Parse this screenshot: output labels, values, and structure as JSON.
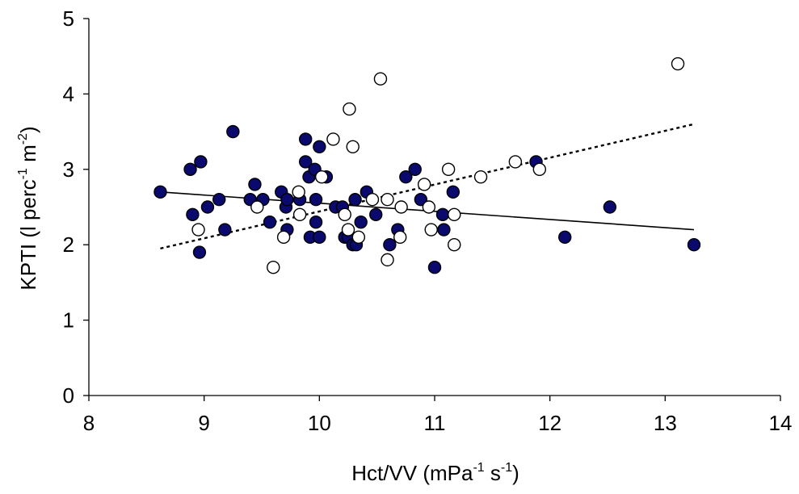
{
  "chart_data": {
    "type": "scatter",
    "title": "",
    "xlabel": {
      "prefix": "Hct/VV (mPa",
      "sup1": "-1",
      "mid": " s",
      "sup2": "-1",
      "suffix": ")"
    },
    "ylabel": {
      "prefix": "KPTI (l perc",
      "sup1": "-1",
      "mid": " m",
      "sup2": "-2",
      "suffix": ")"
    },
    "xlim": [
      8,
      14
    ],
    "ylim": [
      0,
      5
    ],
    "xticks": [
      8,
      9,
      10,
      11,
      12,
      13,
      14
    ],
    "yticks": [
      0,
      1,
      2,
      3,
      4,
      5
    ],
    "grid": false,
    "colors": {
      "filled": "#0a0a6e",
      "open": "#ffffff",
      "stroke": "#000000"
    },
    "series": [
      {
        "marker": "filled-circle",
        "trendline": {
          "style": "solid",
          "x": [
            8.62,
            13.25
          ],
          "y": [
            2.7,
            2.2
          ]
        },
        "points": [
          [
            8.62,
            2.7
          ],
          [
            8.88,
            3.0
          ],
          [
            8.9,
            2.4
          ],
          [
            8.96,
            1.9
          ],
          [
            8.97,
            3.1
          ],
          [
            9.03,
            2.5
          ],
          [
            9.13,
            2.6
          ],
          [
            9.18,
            2.2
          ],
          [
            9.25,
            3.5
          ],
          [
            9.4,
            2.6
          ],
          [
            9.44,
            2.8
          ],
          [
            9.51,
            2.6
          ],
          [
            9.57,
            2.3
          ],
          [
            9.67,
            2.7
          ],
          [
            9.71,
            2.5
          ],
          [
            9.72,
            2.2
          ],
          [
            9.72,
            2.6
          ],
          [
            9.83,
            2.6
          ],
          [
            9.88,
            3.4
          ],
          [
            9.88,
            3.1
          ],
          [
            9.91,
            2.9
          ],
          [
            9.92,
            2.1
          ],
          [
            9.96,
            3.0
          ],
          [
            9.97,
            2.6
          ],
          [
            9.97,
            2.3
          ],
          [
            10.0,
            2.1
          ],
          [
            10.0,
            3.3
          ],
          [
            10.06,
            2.9
          ],
          [
            10.14,
            2.5
          ],
          [
            10.2,
            2.5
          ],
          [
            10.22,
            2.1
          ],
          [
            10.25,
            2.1
          ],
          [
            10.29,
            2.0
          ],
          [
            10.31,
            2.6
          ],
          [
            10.32,
            2.0
          ],
          [
            10.36,
            2.3
          ],
          [
            10.41,
            2.7
          ],
          [
            10.49,
            2.4
          ],
          [
            10.61,
            2.0
          ],
          [
            10.68,
            2.2
          ],
          [
            10.75,
            2.9
          ],
          [
            10.83,
            3.0
          ],
          [
            10.88,
            2.6
          ],
          [
            11.0,
            1.7
          ],
          [
            11.07,
            2.4
          ],
          [
            11.08,
            2.2
          ],
          [
            11.16,
            2.7
          ],
          [
            11.88,
            3.1
          ],
          [
            12.13,
            2.1
          ],
          [
            12.52,
            2.5
          ],
          [
            13.25,
            2.0
          ]
        ]
      },
      {
        "marker": "open-circle",
        "trendline": {
          "style": "dotted",
          "x": [
            8.62,
            13.25
          ],
          "y": [
            1.95,
            3.6
          ]
        },
        "points": [
          [
            8.95,
            2.2
          ],
          [
            9.46,
            2.5
          ],
          [
            9.6,
            1.7
          ],
          [
            9.69,
            2.1
          ],
          [
            9.82,
            2.7
          ],
          [
            9.83,
            2.4
          ],
          [
            10.02,
            2.9
          ],
          [
            10.12,
            3.4
          ],
          [
            10.22,
            2.4
          ],
          [
            10.25,
            2.2
          ],
          [
            10.26,
            3.8
          ],
          [
            10.29,
            3.3
          ],
          [
            10.34,
            2.1
          ],
          [
            10.46,
            2.6
          ],
          [
            10.53,
            4.2
          ],
          [
            10.59,
            1.8
          ],
          [
            10.59,
            2.6
          ],
          [
            10.7,
            2.1
          ],
          [
            10.71,
            2.5
          ],
          [
            10.91,
            2.8
          ],
          [
            10.95,
            2.5
          ],
          [
            10.97,
            2.2
          ],
          [
            11.12,
            3.0
          ],
          [
            11.17,
            2.0
          ],
          [
            11.17,
            2.4
          ],
          [
            11.4,
            2.9
          ],
          [
            11.7,
            3.1
          ],
          [
            11.91,
            3.0
          ],
          [
            13.11,
            4.4
          ]
        ]
      }
    ]
  }
}
